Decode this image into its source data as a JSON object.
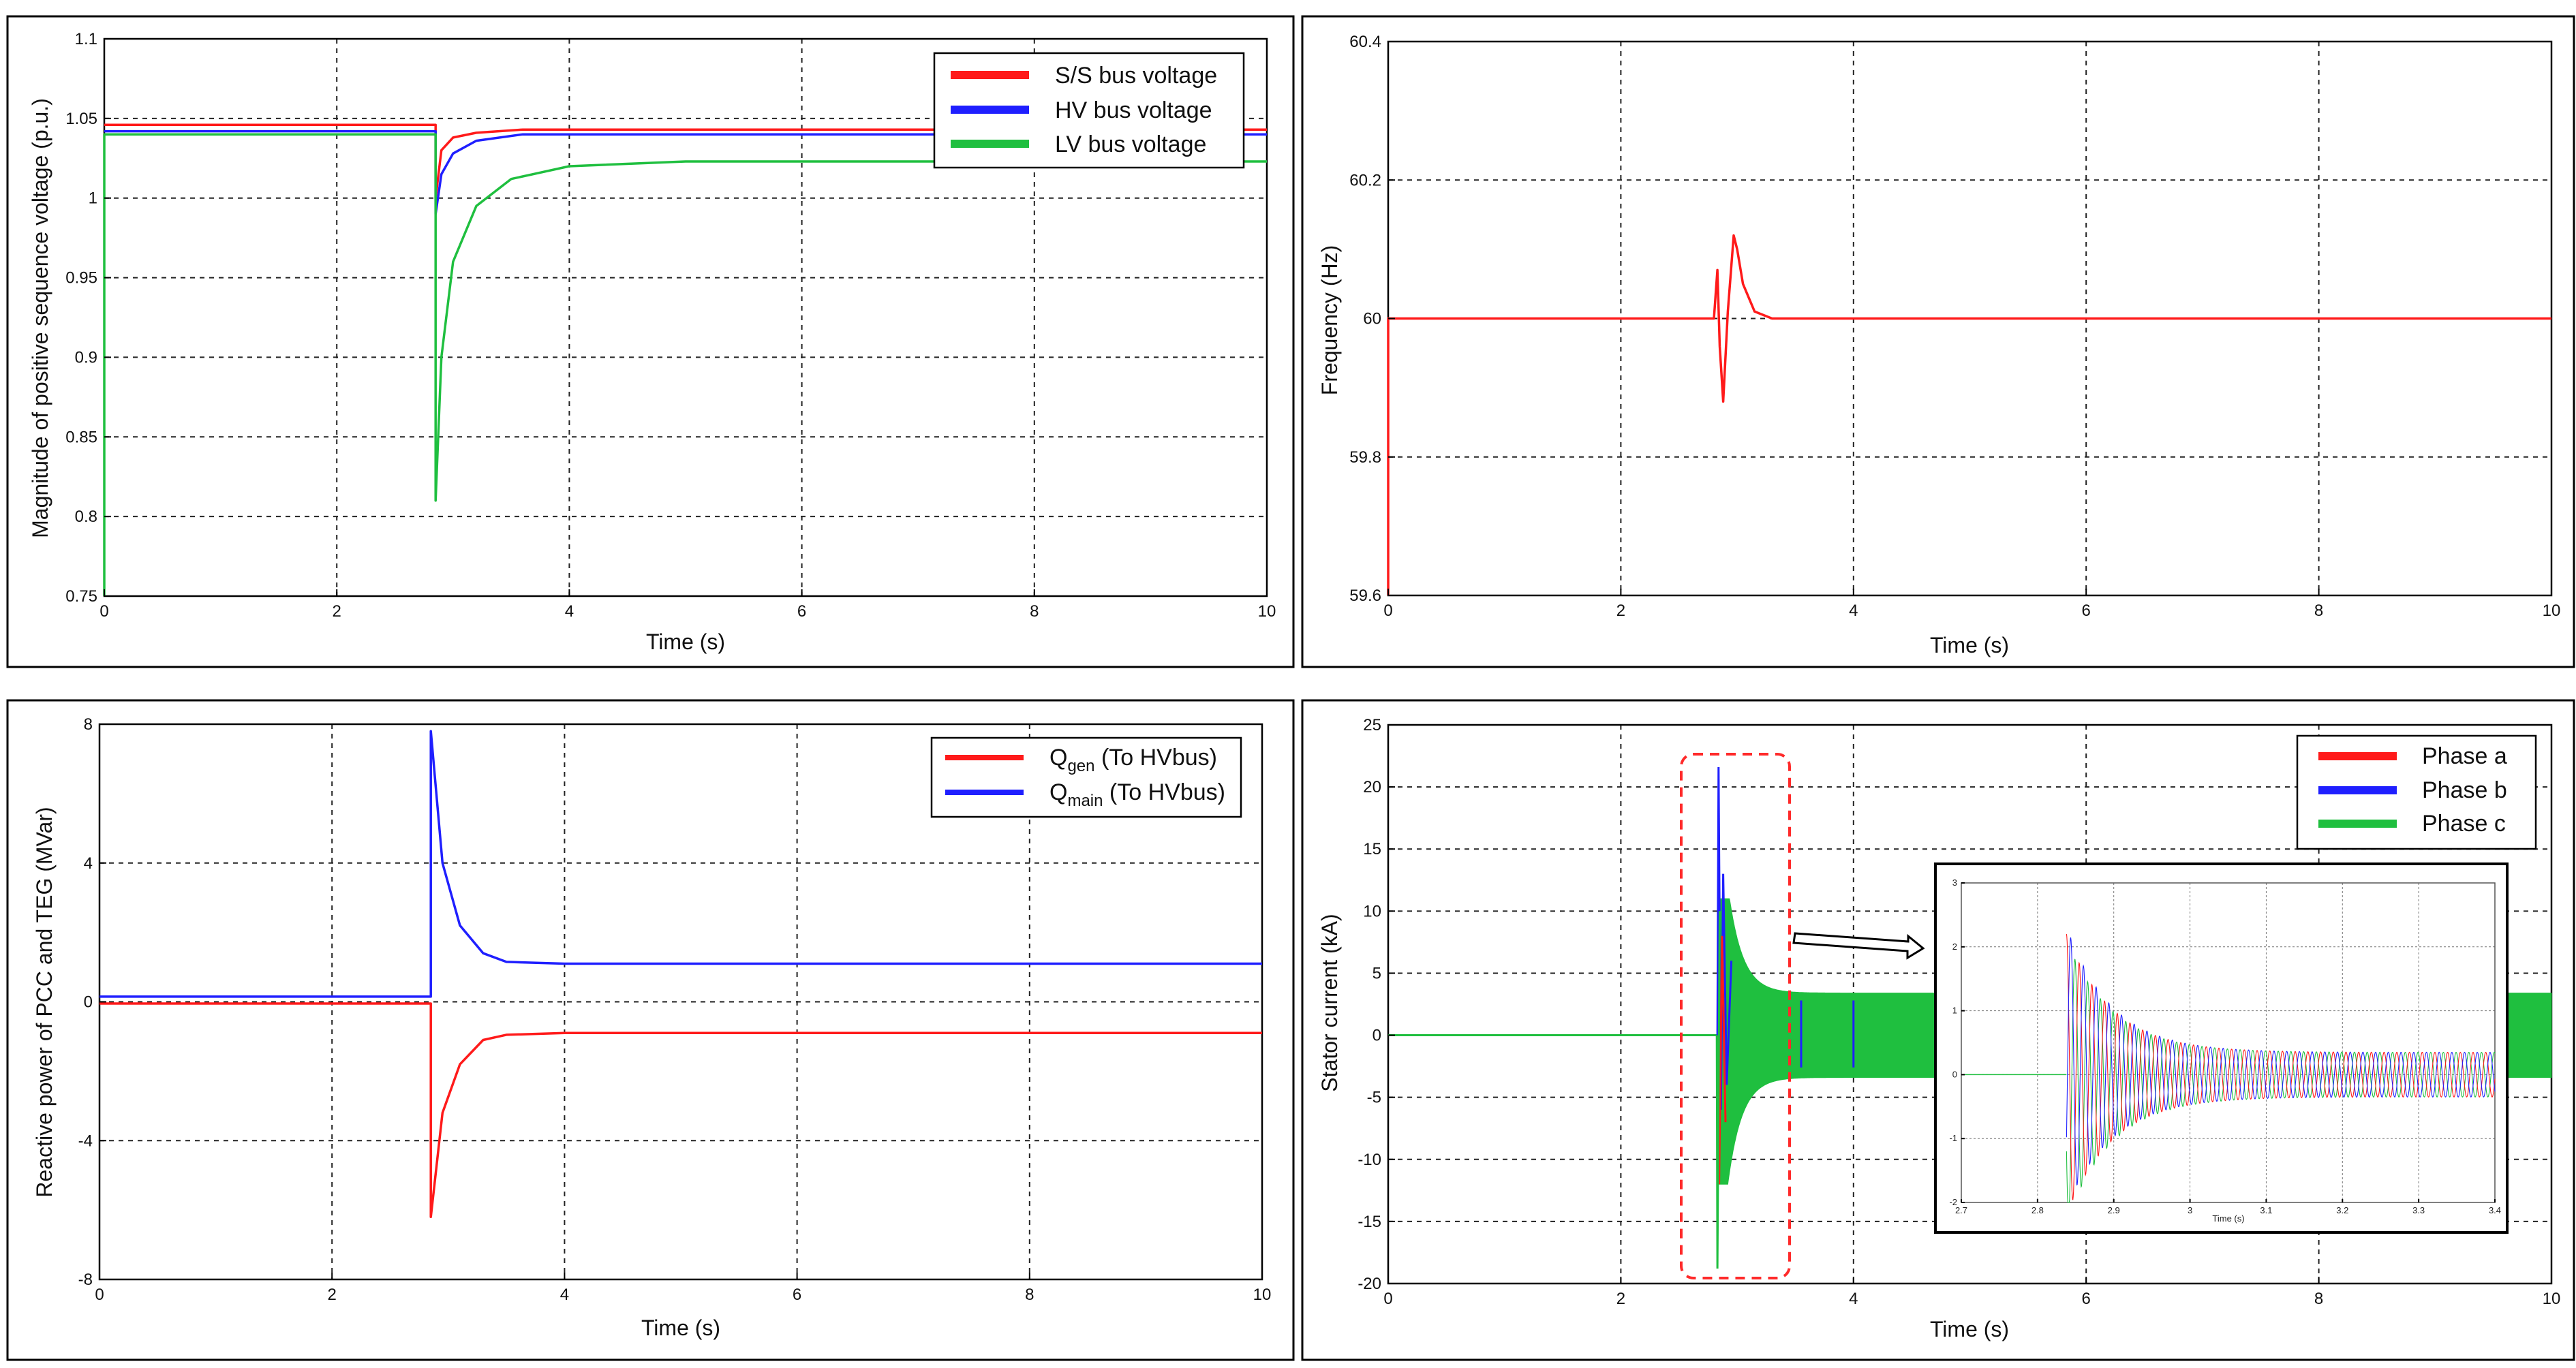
{
  "colors": {
    "red": "#ff1a1a",
    "blue": "#1f1fff",
    "green": "#1fbf3f",
    "dashed_box": "#ff2a2a"
  },
  "chart_data": [
    {
      "id": "voltage",
      "type": "line",
      "xlabel": "Time (s)",
      "ylabel": "Magnitude of positive sequence voltage (p.u.)",
      "xlim": [
        0,
        10
      ],
      "ylim": [
        0.75,
        1.1
      ],
      "xticks": [
        "0",
        "2",
        "4",
        "6",
        "8",
        "10"
      ],
      "yticks": [
        "0.75",
        "0.8",
        "0.85",
        "0.9",
        "0.95",
        "1",
        "1.05",
        "1.1"
      ],
      "grid": true,
      "legend_position": "top-right",
      "series": [
        {
          "name": "S/S bus voltage",
          "color": "#ff1a1a",
          "x": [
            0,
            2.85,
            2.85,
            2.9,
            3.0,
            3.2,
            3.6,
            10
          ],
          "y": [
            1.046,
            1.046,
            1.0,
            1.03,
            1.038,
            1.041,
            1.043,
            1.043
          ]
        },
        {
          "name": "HV bus voltage",
          "color": "#1f1fff",
          "x": [
            0,
            2.85,
            2.85,
            2.9,
            3.0,
            3.2,
            3.6,
            10
          ],
          "y": [
            1.042,
            1.042,
            0.99,
            1.015,
            1.028,
            1.036,
            1.04,
            1.04
          ]
        },
        {
          "name": "LV bus voltage",
          "color": "#1fbf3f",
          "x": [
            0,
            0,
            2.85,
            2.85,
            2.9,
            3.0,
            3.2,
            3.5,
            4.0,
            5.0,
            10
          ],
          "y": [
            0.75,
            1.04,
            1.04,
            0.81,
            0.9,
            0.96,
            0.995,
            1.012,
            1.02,
            1.023,
            1.023
          ]
        }
      ]
    },
    {
      "id": "frequency",
      "type": "line",
      "xlabel": "Time (s)",
      "ylabel": "Frequency (Hz)",
      "xlim": [
        0,
        10
      ],
      "ylim": [
        59.6,
        60.4
      ],
      "xticks": [
        "0",
        "2",
        "4",
        "6",
        "8",
        "10"
      ],
      "yticks": [
        "59.6",
        "59.8",
        "60",
        "60.2",
        "60.4"
      ],
      "grid": true,
      "series": [
        {
          "name": "",
          "color": "#ff1a1a",
          "x": [
            0,
            0,
            2.8,
            2.83,
            2.85,
            2.88,
            2.92,
            2.97,
            3.0,
            3.05,
            3.15,
            3.3,
            3.5,
            10
          ],
          "y": [
            59.6,
            60.0,
            60.0,
            60.07,
            59.96,
            59.88,
            60.01,
            60.12,
            60.1,
            60.05,
            60.01,
            60.0,
            60.0,
            60.0
          ]
        }
      ]
    },
    {
      "id": "reactive",
      "type": "line",
      "xlabel": "Time (s)",
      "ylabel": "Reactive power of PCC and TEG  (MVar)",
      "xlim": [
        0,
        10
      ],
      "ylim": [
        -8,
        8
      ],
      "xticks": [
        "0",
        "2",
        "4",
        "6",
        "8",
        "10"
      ],
      "yticks": [
        "-8",
        "-4",
        "0",
        "4",
        "8"
      ],
      "grid": true,
      "legend_position": "top-right",
      "series": [
        {
          "name": "Q",
          "subscript": "gen",
          "suffix": " (To HVbus)",
          "color": "#ff1a1a",
          "x": [
            0,
            2.85,
            2.85,
            2.95,
            3.1,
            3.3,
            3.5,
            4.0,
            10
          ],
          "y": [
            -0.05,
            -0.05,
            -6.2,
            -3.2,
            -1.8,
            -1.1,
            -0.95,
            -0.9,
            -0.9
          ]
        },
        {
          "name": "Q",
          "subscript": "main",
          "suffix": " (To HVbus)",
          "color": "#1f1fff",
          "x": [
            0,
            2.85,
            2.85,
            2.95,
            3.1,
            3.3,
            3.5,
            4.0,
            10
          ],
          "y": [
            0.15,
            0.15,
            7.8,
            4.0,
            2.2,
            1.4,
            1.15,
            1.1,
            1.1
          ]
        }
      ]
    },
    {
      "id": "stator",
      "type": "line",
      "xlabel": "Time (s)",
      "ylabel": "Stator current (kA)",
      "xlim": [
        0,
        10
      ],
      "ylim": [
        -20,
        25
      ],
      "xticks": [
        "0",
        "2",
        "4",
        "6",
        "8",
        "10"
      ],
      "yticks": [
        "-20",
        "-15",
        "-10",
        "-5",
        "0",
        "5",
        "10",
        "15",
        "20",
        "25"
      ],
      "grid": true,
      "legend_position": "top-right",
      "series": [
        {
          "name": "Phase a",
          "color": "#ff1a1a"
        },
        {
          "name": "Phase b",
          "color": "#1f1fff"
        },
        {
          "name": "Phase c",
          "color": "#1fbf3f"
        }
      ],
      "steady_amplitude_kA": 3.4,
      "peak_kA": 21.6,
      "min_kA": -18.8,
      "fault_time_s": 2.83,
      "inset": {
        "xlabel": "Time (s)",
        "xlim": [
          2.7,
          3.4
        ],
        "ylim": [
          -2,
          3
        ],
        "xticks": [
          "2.7",
          "2.8",
          "2.9",
          "3",
          "3.1",
          "3.2",
          "3.3",
          "3.4"
        ],
        "yticks": [
          "-2",
          "-1",
          "0",
          "1",
          "2",
          "3"
        ],
        "peak": 2.2,
        "trough": -1.9,
        "steady_amplitude": 0.35
      }
    }
  ]
}
